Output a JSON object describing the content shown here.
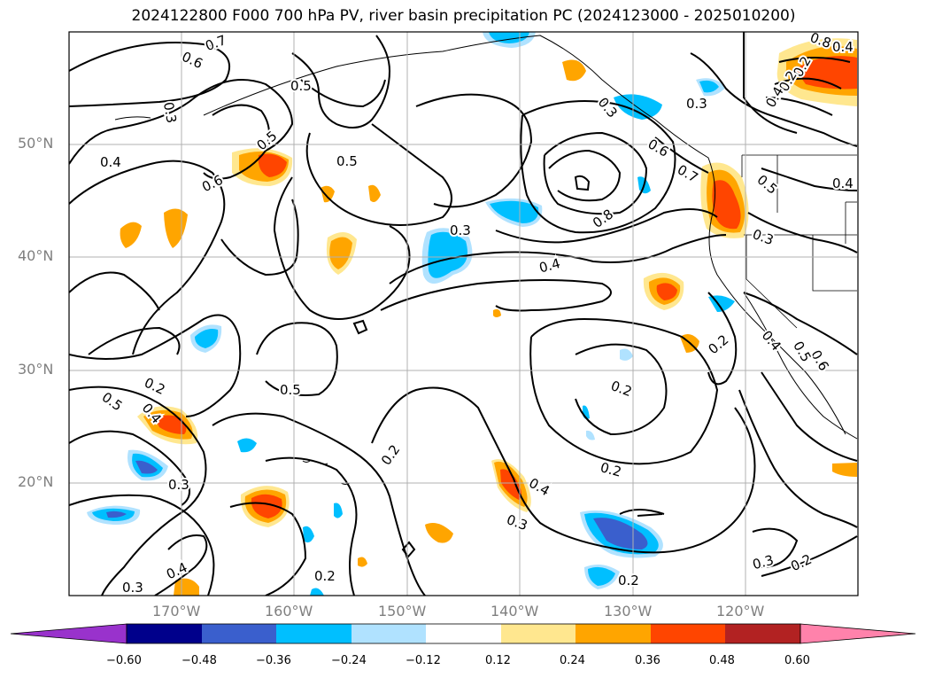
{
  "title": "2024122800 F000 700 hPa PV, river basin precipitation PC (2024123000 - 2025010200)",
  "lat_labels": [
    "50°N",
    "40°N",
    "30°N",
    "20°N"
  ],
  "lon_labels": [
    "170°W",
    "160°W",
    "150°W",
    "140°W",
    "130°W",
    "120°W"
  ],
  "contour_labels": [
    "0.7",
    "0.6",
    "0.5",
    "0.3",
    "0.5",
    "0.4",
    "0.6",
    "0.5",
    "0.3",
    "0.4",
    "0.6",
    "0.8",
    "0.5",
    "0.3",
    "0.4",
    "0.5",
    "0.2",
    "0.3",
    "0.2",
    "0.5",
    "0.4",
    "0.2",
    "0.2",
    "0.3",
    "0.4",
    "0.3",
    "0.2",
    "0.3",
    "0.2",
    "0.2",
    "0.3",
    "0.2",
    "0.4",
    "0.8",
    "0.4",
    "0.2",
    "0.2",
    "0.4",
    "0.3",
    "0.7",
    "0.4",
    "0.6",
    "0.5"
  ],
  "colorbar": {
    "ticks": [
      "−0.60",
      "−0.48",
      "−0.36",
      "−0.24",
      "−0.12",
      "0.12",
      "0.24",
      "0.36",
      "0.48",
      "0.60"
    ],
    "colors": [
      "#9932cc",
      "#00008b",
      "#3a5fcd",
      "#00bfff",
      "#b0e2ff",
      "#ffffff",
      "#ffe78f",
      "#ffa500",
      "#ff4500",
      "#b22222",
      "#ff82ab"
    ]
  }
}
